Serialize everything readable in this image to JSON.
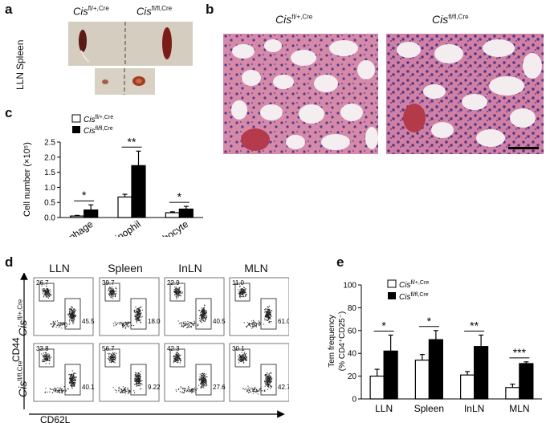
{
  "panel_a": {
    "letter": "a",
    "col_labels": [
      {
        "name": "Cis",
        "sup": "fl/+,Cre"
      },
      {
        "name": "Cis",
        "sup": "fl/fl,Cre"
      }
    ],
    "row_labels": [
      "Spleen",
      "LLN"
    ]
  },
  "panel_b": {
    "letter": "b",
    "labels": [
      {
        "name": "Cis",
        "sup": "fl/+,Cre"
      },
      {
        "name": "Cis",
        "sup": "fl/fl,Cre"
      }
    ]
  },
  "panel_c": {
    "letter": "c",
    "ylabel": "Cell number (×10⁵)",
    "legend": [
      {
        "name": "Cis",
        "sup": "fl/+,Cre",
        "color": "#ffffff"
      },
      {
        "name": "Cis",
        "sup": "fl/fl,Cre",
        "color": "#000000"
      }
    ],
    "stars": [
      "*",
      "**",
      "*"
    ]
  },
  "panel_d": {
    "letter": "d",
    "columns": [
      "LLN",
      "Spleen",
      "InLN",
      "MLN"
    ],
    "rows": [
      {
        "name": "Cis",
        "sup": "fl/+,Cre"
      },
      {
        "name": "Cis",
        "sup": "fl/fl,Cre"
      }
    ],
    "ylabel": "CD44",
    "xlabel": "CD62L",
    "gates": [
      [
        {
          "top": "26.7",
          "bottom": "45.5"
        },
        {
          "top": "39.7",
          "bottom": "18.0"
        },
        {
          "top": "22.9",
          "bottom": "40.5"
        },
        {
          "top": "11.0",
          "bottom": "61.0"
        }
      ],
      [
        {
          "top": "33.8",
          "bottom": "40.1"
        },
        {
          "top": "56.7",
          "bottom": "9.22"
        },
        {
          "top": "42.3",
          "bottom": "27.6"
        },
        {
          "top": "30.1",
          "bottom": "42.7"
        }
      ]
    ]
  },
  "panel_e": {
    "letter": "e",
    "ylabel_line1": "Tem frequency",
    "ylabel_line2": "(% CD4⁺CD25⁻)",
    "legend": [
      {
        "name": "Cis",
        "sup": "fl/+,Cre",
        "color": "#ffffff"
      },
      {
        "name": "Cis",
        "sup": "fl/fl,Cre",
        "color": "#000000"
      }
    ],
    "stars": [
      "*",
      "*",
      "**",
      "***"
    ]
  },
  "chart_data": [
    {
      "type": "bar",
      "panel": "c",
      "categories": [
        "Macrophage",
        "Eosinophil",
        "Lymphocyte"
      ],
      "series": [
        {
          "name": "Cisfl/+,Cre",
          "values": [
            0.05,
            0.68,
            0.16
          ],
          "errors": [
            0.02,
            0.09,
            0.03
          ],
          "color": "#ffffff"
        },
        {
          "name": "Cisfl/fl,Cre",
          "values": [
            0.25,
            1.72,
            0.28
          ],
          "errors": [
            0.17,
            0.48,
            0.09
          ],
          "color": "#000000"
        }
      ],
      "ylabel": "Cell number (×10⁵)",
      "ylim": [
        0,
        2.5
      ],
      "yticks": [
        "0.0",
        "0.5",
        "1.0",
        "1.5",
        "2.0",
        "2.5"
      ]
    },
    {
      "type": "bar",
      "panel": "e",
      "categories": [
        "LLN",
        "Spleen",
        "InLN",
        "MLN"
      ],
      "series": [
        {
          "name": "Cisfl/+,Cre",
          "values": [
            20,
            34,
            21,
            10
          ],
          "errors": [
            6,
            5,
            3,
            3
          ],
          "color": "#ffffff"
        },
        {
          "name": "Cisfl/fl,Cre",
          "values": [
            42,
            52,
            46,
            31
          ],
          "errors": [
            14,
            8,
            10,
            1.5
          ],
          "color": "#000000"
        }
      ],
      "ylabel": "Tem frequency (% CD4⁺CD25⁻)",
      "ylim": [
        0,
        100
      ],
      "yticks": [
        "0",
        "20",
        "40",
        "60",
        "80",
        "100"
      ]
    }
  ]
}
